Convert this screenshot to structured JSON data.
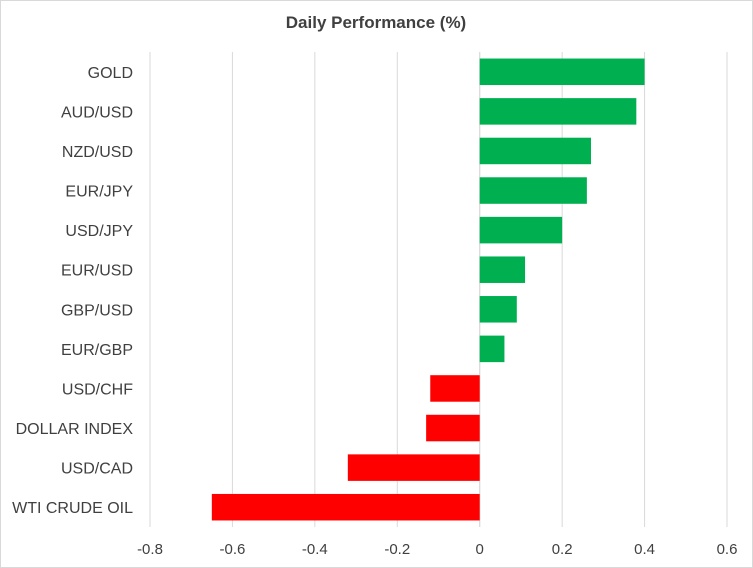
{
  "chart_data": {
    "type": "bar",
    "orientation": "horizontal",
    "title": "Daily Performance (%)",
    "xlabel": "",
    "ylabel": "",
    "xlim": [
      -0.8,
      0.6
    ],
    "x_ticks": [
      "-0.8",
      "-0.6",
      "-0.4",
      "-0.2",
      "0",
      "0.2",
      "0.4",
      "0.6"
    ],
    "grid": "vertical",
    "legend": "none",
    "categories": [
      "GOLD",
      "AUD/USD",
      "NZD/USD",
      "EUR/JPY",
      "USD/JPY",
      "EUR/USD",
      "GBP/USD",
      "EUR/GBP",
      "USD/CHF",
      "DOLLAR INDEX",
      "USD/CAD",
      "WTI CRUDE OIL"
    ],
    "values": [
      0.4,
      0.38,
      0.27,
      0.26,
      0.2,
      0.11,
      0.09,
      0.06,
      -0.12,
      -0.13,
      -0.32,
      -0.65
    ],
    "colors": {
      "positive": "#00b050",
      "negative": "#ff0000"
    }
  }
}
